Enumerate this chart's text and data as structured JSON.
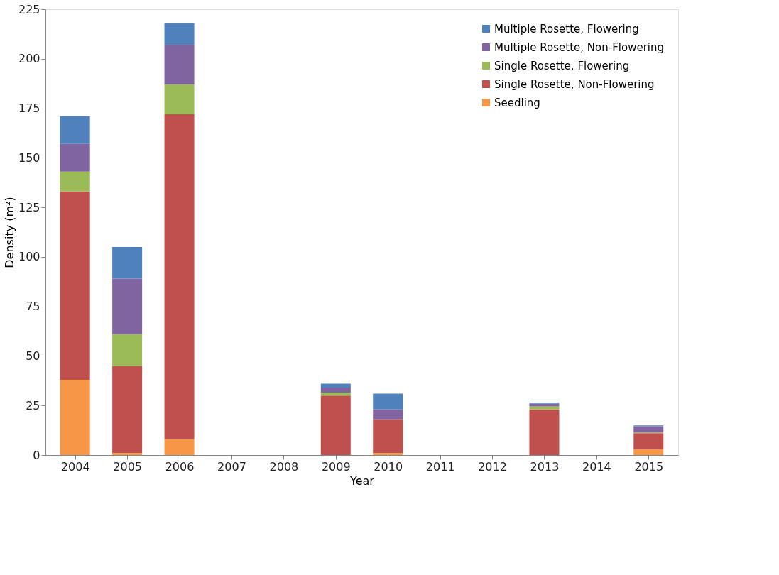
{
  "chart_data": {
    "type": "bar",
    "stacked": true,
    "xlabel": "Year",
    "ylabel": "Density (m²)",
    "categories": [
      "2004",
      "2005",
      "2006",
      "2007",
      "2008",
      "2009",
      "2010",
      "2011",
      "2012",
      "2013",
      "2014",
      "2015"
    ],
    "ylim": [
      0,
      225
    ],
    "yticks": [
      0,
      25,
      50,
      75,
      100,
      125,
      150,
      175,
      200,
      225
    ],
    "grid": false,
    "legend": "top right",
    "series": [
      {
        "name": "Seedling",
        "color": "#f79646",
        "values": [
          38,
          1,
          8,
          0,
          0,
          0,
          1,
          0,
          0,
          0,
          0,
          3
        ]
      },
      {
        "name": "Single Rosette, Non-Flowering",
        "color": "#c0504d",
        "values": [
          95,
          44,
          164,
          0,
          0,
          30,
          17,
          0,
          0,
          23,
          0,
          8
        ]
      },
      {
        "name": "Single Rosette, Flowering",
        "color": "#9bbb59",
        "values": [
          10,
          16,
          15,
          0,
          0,
          1.5,
          0,
          0,
          0,
          1.5,
          0,
          0.5
        ]
      },
      {
        "name": "Multiple Rosette, Non-Flowering",
        "color": "#8064a2",
        "values": [
          14,
          28,
          20,
          0,
          0,
          2.5,
          5,
          0,
          0,
          1.5,
          0,
          3
        ]
      },
      {
        "name": "Multiple Rosette, Flowering",
        "color": "#4f81bd",
        "values": [
          14,
          16,
          11,
          0,
          0,
          2,
          8,
          0,
          0,
          0.5,
          0,
          0.5
        ]
      }
    ]
  }
}
